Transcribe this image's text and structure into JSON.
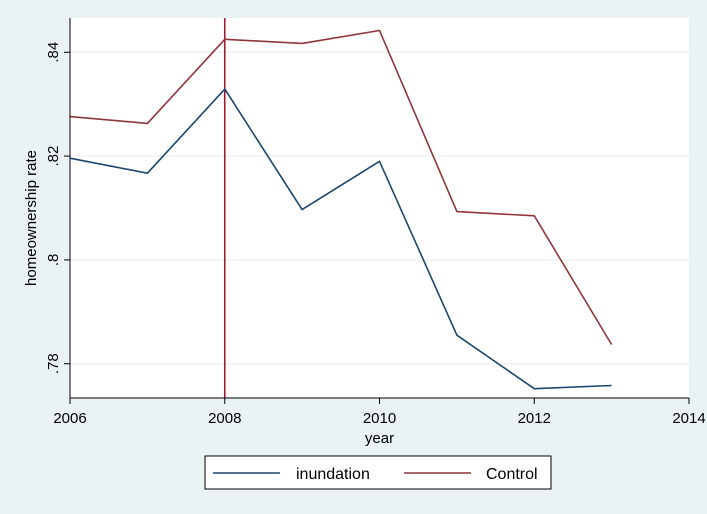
{
  "chart_data": {
    "type": "line",
    "xlabel": "year",
    "ylabel": "homeownership rate",
    "xlim": [
      2006,
      2014
    ],
    "ylim": [
      0.7734,
      0.8466
    ],
    "x_ticks": [
      2006,
      2008,
      2010,
      2012,
      2014
    ],
    "x_tick_labels": [
      "2006",
      "2008",
      "2010",
      "2012",
      "2014"
    ],
    "y_ticks": [
      0.78,
      0.8,
      0.82,
      0.84
    ],
    "y_tick_labels": [
      ".78",
      ".8",
      ".82",
      ".84"
    ],
    "grid": true,
    "vertical_reference_line": {
      "x": 2008,
      "color": "#9b1b30"
    },
    "legend_position": "bottom",
    "series": [
      {
        "name": "inundation",
        "color": "#1a476f",
        "x": [
          2006,
          2007,
          2008,
          2009,
          2010,
          2011,
          2012,
          2013
        ],
        "values": [
          0.8196,
          0.8167,
          0.8329,
          0.8097,
          0.819,
          0.7855,
          0.7752,
          0.7758
        ]
      },
      {
        "name": "Control",
        "color": "#90353b",
        "x": [
          2006,
          2007,
          2008,
          2009,
          2010,
          2011,
          2012,
          2013
        ],
        "values": [
          0.8276,
          0.8263,
          0.8425,
          0.8417,
          0.8442,
          0.8093,
          0.8085,
          0.7837
        ]
      }
    ]
  }
}
